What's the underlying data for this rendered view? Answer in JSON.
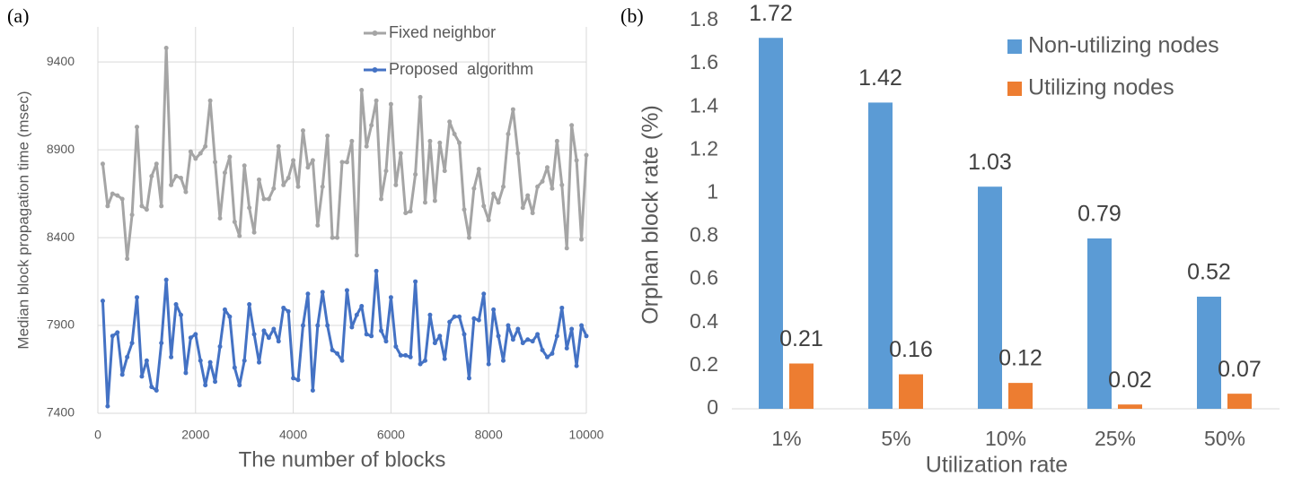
{
  "chart_data": [
    {
      "type": "line",
      "panel_label": "(a)",
      "x_label": "The number of blocks",
      "y_label": "Median block propagation time (msec)",
      "x": [
        100,
        200,
        300,
        400,
        500,
        600,
        700,
        800,
        900,
        1000,
        1100,
        1200,
        1300,
        1400,
        1500,
        1600,
        1700,
        1800,
        1900,
        2000,
        2100,
        2200,
        2300,
        2400,
        2500,
        2600,
        2700,
        2800,
        2900,
        3000,
        3100,
        3200,
        3300,
        3400,
        3500,
        3600,
        3700,
        3800,
        3900,
        4000,
        4100,
        4200,
        4300,
        4400,
        4500,
        4600,
        4700,
        4800,
        4900,
        5000,
        5100,
        5200,
        5300,
        5400,
        5500,
        5600,
        5700,
        5800,
        5900,
        6000,
        6100,
        6200,
        6300,
        6400,
        6500,
        6600,
        6700,
        6800,
        6900,
        7000,
        7100,
        7200,
        7300,
        7400,
        7500,
        7600,
        7700,
        7800,
        7900,
        8000,
        8100,
        8200,
        8300,
        8400,
        8500,
        8600,
        8700,
        8800,
        8900,
        9000,
        9100,
        9200,
        9300,
        9400,
        9500,
        9600,
        9700,
        9800,
        9900,
        10000
      ],
      "series": [
        {
          "name": "Fixed neighbor",
          "color": "#a5a5a5",
          "values": [
            8820,
            8580,
            8650,
            8640,
            8620,
            8280,
            8530,
            9030,
            8580,
            8560,
            8750,
            8820,
            8580,
            9480,
            8700,
            8750,
            8740,
            8660,
            8890,
            8850,
            8880,
            8920,
            9180,
            8830,
            8510,
            8770,
            8860,
            8490,
            8410,
            8810,
            8570,
            8430,
            8730,
            8620,
            8620,
            8680,
            8920,
            8700,
            8740,
            8840,
            8690,
            9010,
            8800,
            8840,
            8470,
            8690,
            8980,
            8400,
            8400,
            8830,
            8830,
            8950,
            8300,
            9240,
            8920,
            9040,
            9180,
            8620,
            8780,
            9160,
            8700,
            8880,
            8540,
            8550,
            8760,
            9200,
            8600,
            8950,
            8610,
            8940,
            8780,
            9060,
            8990,
            8940,
            8560,
            8400,
            8680,
            8790,
            8580,
            8500,
            8650,
            8600,
            8690,
            8990,
            9130,
            8880,
            8570,
            8640,
            8540,
            8690,
            8720,
            8800,
            8680,
            8950,
            8700,
            8340,
            9040,
            8840,
            8390,
            8870
          ]
        },
        {
          "name": "Proposed  algorithm",
          "color": "#4472c4",
          "values": [
            8040,
            7440,
            7840,
            7860,
            7620,
            7720,
            7800,
            8060,
            7610,
            7700,
            7550,
            7530,
            7800,
            8160,
            7720,
            8020,
            7960,
            7630,
            7830,
            7850,
            7700,
            7560,
            7690,
            7580,
            7780,
            7990,
            7950,
            7660,
            7560,
            7700,
            8020,
            7850,
            7690,
            7870,
            7830,
            7880,
            7810,
            8000,
            7980,
            7600,
            7590,
            7900,
            8080,
            7530,
            7900,
            8090,
            7900,
            7760,
            7740,
            7700,
            8100,
            7890,
            7960,
            8010,
            7850,
            7840,
            8210,
            7870,
            7810,
            8060,
            7780,
            7730,
            7730,
            7720,
            8150,
            7680,
            7700,
            7960,
            7800,
            7840,
            7710,
            7920,
            7950,
            7950,
            7850,
            7600,
            7940,
            7930,
            8080,
            7680,
            7990,
            7840,
            7700,
            7900,
            7820,
            7880,
            7800,
            7820,
            7810,
            7850,
            7760,
            7720,
            7740,
            7840,
            8000,
            7770,
            7880,
            7670,
            7900,
            7840
          ]
        }
      ],
      "xlim": [
        0,
        10000
      ],
      "xticks": [
        0,
        2000,
        4000,
        6000,
        8000,
        10000
      ],
      "ylim": [
        7400,
        9600
      ],
      "yticks": [
        7400,
        7900,
        8400,
        8900,
        9400
      ],
      "grid": true
    },
    {
      "type": "bar",
      "panel_label": "(b)",
      "x_label": "Utilization rate",
      "y_label": "Orphan block rate (%)",
      "categories": [
        "1%",
        "5%",
        "10%",
        "25%",
        "50%"
      ],
      "series": [
        {
          "name": "Non-utilizing nodes",
          "color": "#5b9bd5",
          "values": [
            1.72,
            1.42,
            1.03,
            0.79,
            0.52
          ]
        },
        {
          "name": "Utilizing nodes",
          "color": "#ed7d31",
          "values": [
            0.21,
            0.16,
            0.12,
            0.02,
            0.07
          ]
        }
      ],
      "ylim": [
        0,
        1.8
      ],
      "yticks": [
        0,
        0.2,
        0.4,
        0.6,
        0.8,
        1,
        1.2,
        1.4,
        1.6,
        1.8
      ],
      "grid": false
    }
  ]
}
